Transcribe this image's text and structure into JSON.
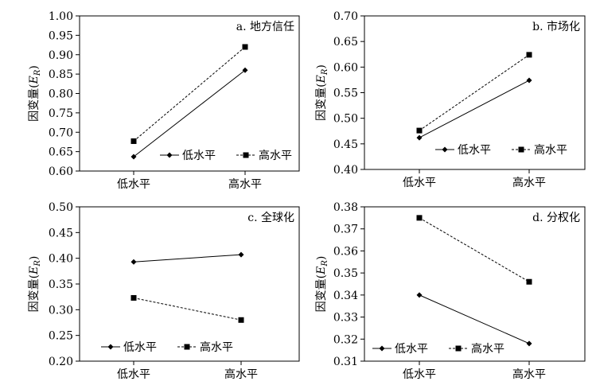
{
  "figure": {
    "x_categories": [
      "低水平",
      "高水平"
    ],
    "y_label_main": "因变量(",
    "y_label_sub": "R",
    "y_label_italic": "E",
    "y_label_close": ")"
  },
  "chart_data": [
    {
      "type": "line",
      "title": "a. 地方信任",
      "categories": [
        "低水平",
        "高水平"
      ],
      "series": [
        {
          "name": "低水平",
          "values": [
            0.637,
            0.86
          ],
          "marker": "diamond",
          "line": "solid"
        },
        {
          "name": "高水平",
          "values": [
            0.677,
            0.92
          ],
          "marker": "square",
          "line": "dashed"
        }
      ],
      "ylim": [
        0.6,
        1.0
      ],
      "yticks": [
        "0.60",
        "0.65",
        "0.70",
        "0.75",
        "0.80",
        "0.85",
        "0.90",
        "0.95",
        "1.00"
      ],
      "legend_position": "bottom-right",
      "grid": false
    },
    {
      "type": "line",
      "title": "b. 市场化",
      "categories": [
        "低水平",
        "高水平"
      ],
      "series": [
        {
          "name": "低水平",
          "values": [
            0.462,
            0.574
          ],
          "marker": "diamond",
          "line": "solid"
        },
        {
          "name": "高水平",
          "values": [
            0.476,
            0.624
          ],
          "marker": "square",
          "line": "dashed"
        }
      ],
      "ylim": [
        0.4,
        0.7
      ],
      "yticks": [
        "0.40",
        "0.45",
        "0.50",
        "0.55",
        "0.60",
        "0.65",
        "0.70"
      ],
      "legend_position": "bottom-right",
      "grid": false
    },
    {
      "type": "line",
      "title": "c. 全球化",
      "categories": [
        "低水平",
        "高水平"
      ],
      "series": [
        {
          "name": "低水平",
          "values": [
            0.393,
            0.407
          ],
          "marker": "diamond",
          "line": "solid"
        },
        {
          "name": "高水平",
          "values": [
            0.323,
            0.28
          ],
          "marker": "square",
          "line": "dashed"
        }
      ],
      "ylim": [
        0.2,
        0.5
      ],
      "yticks": [
        "0.20",
        "0.25",
        "0.30",
        "0.35",
        "0.40",
        "0.45",
        "0.50"
      ],
      "legend_position": "bottom-left",
      "grid": false
    },
    {
      "type": "line",
      "title": "d. 分权化",
      "categories": [
        "低水平",
        "高水平"
      ],
      "series": [
        {
          "name": "低水平",
          "values": [
            0.34,
            0.318
          ],
          "marker": "diamond",
          "line": "solid"
        },
        {
          "name": "高水平",
          "values": [
            0.375,
            0.346
          ],
          "marker": "square",
          "line": "dashed"
        }
      ],
      "ylim": [
        0.31,
        0.38
      ],
      "yticks": [
        "0.31",
        "0.32",
        "0.33",
        "0.34",
        "0.35",
        "0.36",
        "0.37",
        "0.38"
      ],
      "legend_position": "bottom-left",
      "grid": false
    }
  ]
}
